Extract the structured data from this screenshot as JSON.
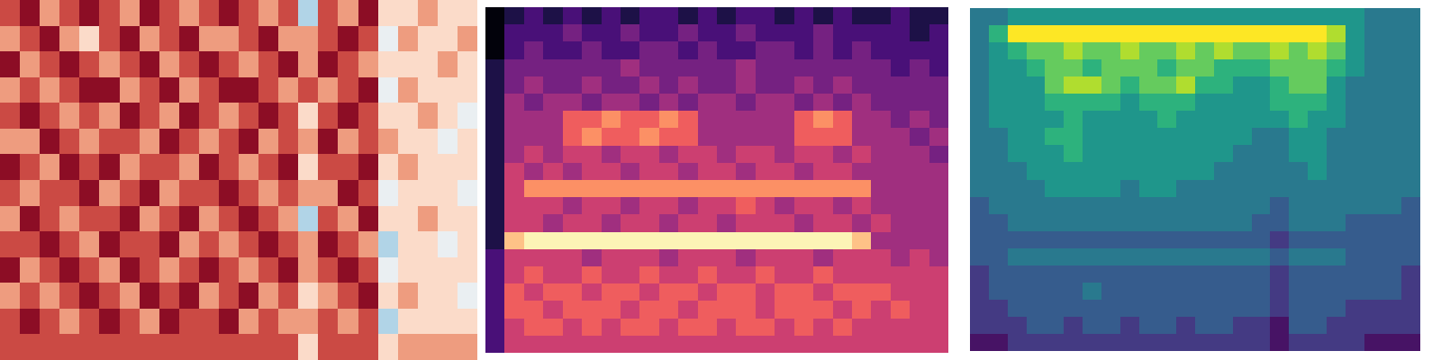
{
  "chart_data": [
    {
      "type": "heatmap",
      "color": "coolwarm",
      "tick_labels": false,
      "cells": [
        [
          7,
          8,
          6,
          7,
          8,
          7,
          6,
          8,
          7,
          6,
          7,
          8,
          7,
          6,
          7,
          3,
          7,
          6,
          8,
          5,
          5,
          6,
          5,
          5
        ],
        [
          6,
          7,
          8,
          6,
          5,
          7,
          8,
          6,
          7,
          8,
          6,
          6,
          7,
          8,
          6,
          6,
          7,
          8,
          7,
          4,
          6,
          5,
          5,
          6
        ],
        [
          8,
          6,
          7,
          8,
          7,
          6,
          7,
          8,
          6,
          7,
          8,
          7,
          6,
          7,
          8,
          6,
          8,
          7,
          6,
          5,
          5,
          5,
          6,
          5
        ],
        [
          6,
          7,
          6,
          7,
          8,
          8,
          6,
          7,
          8,
          6,
          7,
          8,
          8,
          7,
          6,
          7,
          6,
          7,
          8,
          4,
          6,
          5,
          5,
          5
        ],
        [
          7,
          8,
          7,
          6,
          7,
          6,
          8,
          7,
          6,
          8,
          7,
          6,
          7,
          8,
          7,
          5,
          7,
          8,
          7,
          5,
          5,
          6,
          5,
          4
        ],
        [
          6,
          6,
          8,
          7,
          6,
          7,
          7,
          6,
          8,
          7,
          6,
          7,
          8,
          6,
          7,
          6,
          8,
          6,
          7,
          6,
          5,
          5,
          4,
          5
        ],
        [
          8,
          7,
          6,
          8,
          7,
          8,
          6,
          7,
          7,
          6,
          8,
          7,
          6,
          7,
          8,
          5,
          7,
          7,
          8,
          5,
          6,
          5,
          5,
          5
        ],
        [
          7,
          6,
          7,
          7,
          8,
          6,
          7,
          8,
          6,
          7,
          7,
          8,
          7,
          6,
          7,
          6,
          6,
          8,
          7,
          4,
          5,
          5,
          5,
          4
        ],
        [
          6,
          8,
          7,
          6,
          7,
          7,
          8,
          6,
          7,
          8,
          6,
          7,
          8,
          7,
          6,
          3,
          7,
          6,
          8,
          5,
          5,
          6,
          5,
          5
        ],
        [
          7,
          7,
          8,
          7,
          6,
          8,
          7,
          7,
          8,
          6,
          7,
          6,
          7,
          8,
          7,
          6,
          8,
          7,
          6,
          3,
          5,
          5,
          4,
          5
        ],
        [
          8,
          6,
          7,
          8,
          7,
          6,
          8,
          7,
          6,
          7,
          8,
          7,
          6,
          7,
          8,
          6,
          7,
          8,
          7,
          4,
          5,
          5,
          5,
          5
        ],
        [
          6,
          7,
          6,
          7,
          8,
          7,
          6,
          8,
          7,
          8,
          6,
          7,
          8,
          6,
          7,
          5,
          6,
          7,
          8,
          5,
          6,
          5,
          5,
          4
        ],
        [
          7,
          8,
          7,
          6,
          7,
          8,
          7,
          6,
          8,
          7,
          7,
          8,
          6,
          7,
          6,
          6,
          7,
          6,
          7,
          3,
          5,
          5,
          5,
          5
        ],
        [
          7,
          7,
          7,
          7,
          7,
          7,
          7,
          7,
          7,
          7,
          7,
          7,
          7,
          7,
          7,
          5,
          7,
          7,
          7,
          5,
          6,
          6,
          6,
          6
        ]
      ]
    },
    {
      "type": "heatmap",
      "color": "magma",
      "tick_labels": false,
      "cells": [
        [
          0,
          1,
          2,
          1,
          2,
          1,
          2,
          1,
          2,
          2,
          1,
          2,
          1,
          2,
          2,
          1,
          2,
          1,
          2,
          1,
          1,
          2,
          1,
          1
        ],
        [
          0,
          2,
          2,
          2,
          3,
          2,
          2,
          3,
          2,
          2,
          3,
          2,
          2,
          3,
          2,
          2,
          2,
          3,
          2,
          2,
          2,
          2,
          1,
          2
        ],
        [
          0,
          2,
          3,
          2,
          2,
          3,
          2,
          2,
          3,
          3,
          2,
          3,
          2,
          2,
          3,
          3,
          2,
          3,
          2,
          3,
          2,
          2,
          2,
          2
        ],
        [
          1,
          3,
          3,
          3,
          3,
          3,
          3,
          4,
          3,
          3,
          3,
          3,
          3,
          4,
          3,
          3,
          3,
          3,
          3,
          3,
          3,
          2,
          3,
          2
        ],
        [
          1,
          3,
          4,
          3,
          3,
          4,
          3,
          3,
          4,
          3,
          4,
          3,
          3,
          4,
          3,
          3,
          4,
          3,
          4,
          3,
          3,
          3,
          3,
          3
        ],
        [
          1,
          4,
          3,
          4,
          4,
          3,
          4,
          4,
          3,
          4,
          3,
          4,
          4,
          3,
          4,
          4,
          3,
          4,
          3,
          4,
          3,
          3,
          3,
          3
        ],
        [
          1,
          4,
          4,
          4,
          6,
          6,
          7,
          6,
          6,
          7,
          6,
          4,
          4,
          4,
          4,
          4,
          6,
          7,
          6,
          4,
          4,
          3,
          4,
          3
        ],
        [
          1,
          4,
          4,
          4,
          6,
          7,
          6,
          6,
          7,
          6,
          6,
          4,
          4,
          4,
          4,
          4,
          6,
          6,
          6,
          4,
          4,
          4,
          3,
          4
        ],
        [
          1,
          4,
          5,
          4,
          5,
          5,
          4,
          5,
          5,
          4,
          5,
          5,
          4,
          5,
          5,
          4,
          5,
          5,
          4,
          5,
          4,
          4,
          4,
          3
        ],
        [
          1,
          5,
          4,
          5,
          4,
          5,
          5,
          4,
          5,
          5,
          4,
          5,
          5,
          4,
          5,
          5,
          4,
          5,
          5,
          4,
          4,
          4,
          4,
          4
        ],
        [
          1,
          5,
          7,
          7,
          7,
          7,
          7,
          7,
          7,
          7,
          7,
          7,
          7,
          7,
          7,
          7,
          7,
          7,
          7,
          7,
          4,
          4,
          4,
          4
        ],
        [
          1,
          5,
          5,
          5,
          4,
          5,
          5,
          4,
          5,
          5,
          4,
          5,
          5,
          6,
          5,
          4,
          5,
          5,
          4,
          5,
          4,
          4,
          4,
          4
        ],
        [
          1,
          5,
          5,
          4,
          5,
          5,
          4,
          5,
          5,
          4,
          5,
          5,
          4,
          5,
          5,
          5,
          4,
          5,
          5,
          4,
          5,
          4,
          4,
          4
        ],
        [
          1,
          8,
          9,
          9,
          9,
          9,
          9,
          9,
          9,
          9,
          9,
          9,
          9,
          9,
          9,
          9,
          9,
          9,
          9,
          8,
          4,
          4,
          4,
          4
        ],
        [
          2,
          5,
          5,
          5,
          5,
          4,
          5,
          5,
          5,
          4,
          5,
          5,
          5,
          4,
          5,
          5,
          5,
          4,
          5,
          5,
          5,
          4,
          5,
          4
        ],
        [
          2,
          5,
          6,
          5,
          5,
          6,
          5,
          5,
          6,
          5,
          5,
          6,
          5,
          5,
          6,
          5,
          5,
          6,
          5,
          5,
          5,
          5,
          5,
          5
        ],
        [
          2,
          6,
          5,
          6,
          6,
          5,
          6,
          6,
          5,
          6,
          6,
          5,
          6,
          6,
          5,
          6,
          6,
          5,
          6,
          6,
          6,
          5,
          5,
          5
        ],
        [
          2,
          6,
          6,
          5,
          6,
          6,
          6,
          5,
          6,
          6,
          5,
          6,
          6,
          6,
          5,
          6,
          6,
          6,
          5,
          6,
          5,
          6,
          5,
          5
        ],
        [
          2,
          5,
          6,
          6,
          5,
          6,
          5,
          6,
          6,
          5,
          6,
          6,
          5,
          6,
          6,
          5,
          6,
          5,
          6,
          5,
          5,
          5,
          5,
          5
        ],
        [
          2,
          5,
          5,
          5,
          5,
          5,
          5,
          5,
          5,
          5,
          5,
          5,
          5,
          5,
          5,
          5,
          5,
          5,
          5,
          5,
          5,
          5,
          5,
          5
        ]
      ]
    },
    {
      "type": "heatmap",
      "color": "viridis",
      "tick_labels": false,
      "cells": [
        [
          4,
          4,
          5,
          5,
          5,
          5,
          5,
          5,
          5,
          5,
          5,
          5,
          5,
          5,
          5,
          5,
          5,
          5,
          5,
          5,
          5,
          4,
          4,
          4
        ],
        [
          4,
          6,
          9,
          9,
          9,
          9,
          9,
          9,
          9,
          9,
          9,
          9,
          9,
          9,
          9,
          9,
          9,
          9,
          9,
          8,
          5,
          4,
          4,
          4
        ],
        [
          4,
          5,
          6,
          7,
          7,
          8,
          7,
          7,
          8,
          7,
          7,
          8,
          7,
          8,
          7,
          7,
          8,
          7,
          8,
          7,
          5,
          4,
          4,
          4
        ],
        [
          4,
          5,
          5,
          6,
          7,
          7,
          6,
          7,
          7,
          7,
          6,
          7,
          7,
          6,
          6,
          6,
          7,
          7,
          7,
          6,
          5,
          4,
          4,
          4
        ],
        [
          4,
          5,
          5,
          5,
          7,
          8,
          8,
          7,
          6,
          7,
          7,
          8,
          6,
          6,
          5,
          5,
          6,
          7,
          7,
          5,
          4,
          4,
          4,
          4
        ],
        [
          4,
          5,
          5,
          5,
          6,
          6,
          6,
          6,
          5,
          6,
          6,
          6,
          5,
          5,
          5,
          5,
          6,
          6,
          6,
          5,
          4,
          4,
          4,
          4
        ],
        [
          4,
          5,
          5,
          5,
          5,
          6,
          5,
          5,
          5,
          5,
          6,
          5,
          5,
          5,
          5,
          5,
          5,
          6,
          5,
          5,
          4,
          4,
          4,
          4
        ],
        [
          4,
          4,
          5,
          5,
          6,
          6,
          5,
          5,
          5,
          5,
          5,
          5,
          5,
          5,
          5,
          4,
          4,
          5,
          5,
          4,
          4,
          4,
          4,
          4
        ],
        [
          4,
          4,
          5,
          5,
          5,
          6,
          5,
          5,
          5,
          5,
          5,
          5,
          5,
          5,
          4,
          4,
          4,
          5,
          5,
          4,
          4,
          4,
          4,
          4
        ],
        [
          4,
          4,
          4,
          5,
          5,
          5,
          5,
          5,
          5,
          5,
          5,
          5,
          5,
          4,
          4,
          4,
          4,
          4,
          5,
          4,
          4,
          4,
          4,
          4
        ],
        [
          4,
          4,
          4,
          4,
          5,
          5,
          5,
          5,
          4,
          5,
          5,
          4,
          4,
          4,
          4,
          4,
          4,
          4,
          4,
          4,
          4,
          4,
          4,
          4
        ],
        [
          3,
          4,
          4,
          4,
          4,
          4,
          4,
          4,
          4,
          4,
          4,
          4,
          4,
          4,
          4,
          4,
          3,
          4,
          4,
          4,
          4,
          4,
          4,
          3
        ],
        [
          3,
          3,
          4,
          4,
          4,
          4,
          4,
          4,
          4,
          4,
          4,
          4,
          4,
          4,
          4,
          3,
          3,
          4,
          4,
          4,
          3,
          3,
          3,
          3
        ],
        [
          3,
          3,
          3,
          3,
          3,
          3,
          3,
          3,
          3,
          3,
          3,
          3,
          3,
          3,
          3,
          3,
          2,
          3,
          3,
          3,
          3,
          3,
          3,
          3
        ],
        [
          3,
          3,
          4,
          4,
          4,
          4,
          4,
          4,
          4,
          4,
          4,
          4,
          4,
          4,
          4,
          4,
          3,
          4,
          4,
          4,
          3,
          3,
          3,
          3
        ],
        [
          2,
          3,
          3,
          3,
          3,
          3,
          3,
          3,
          3,
          3,
          3,
          3,
          3,
          3,
          3,
          3,
          2,
          3,
          3,
          3,
          3,
          3,
          3,
          2
        ],
        [
          2,
          3,
          3,
          3,
          3,
          3,
          4,
          3,
          3,
          3,
          3,
          3,
          3,
          3,
          3,
          3,
          2,
          3,
          3,
          3,
          3,
          3,
          3,
          2
        ],
        [
          2,
          2,
          3,
          3,
          3,
          3,
          3,
          3,
          3,
          3,
          3,
          3,
          3,
          3,
          3,
          3,
          2,
          3,
          3,
          3,
          2,
          2,
          2,
          2
        ],
        [
          2,
          2,
          2,
          3,
          3,
          2,
          3,
          3,
          2,
          3,
          3,
          2,
          3,
          3,
          2,
          2,
          1,
          3,
          3,
          2,
          2,
          2,
          2,
          2
        ],
        [
          1,
          1,
          2,
          2,
          2,
          2,
          2,
          2,
          2,
          2,
          2,
          2,
          2,
          2,
          2,
          2,
          1,
          2,
          2,
          2,
          2,
          1,
          1,
          1
        ]
      ]
    }
  ]
}
